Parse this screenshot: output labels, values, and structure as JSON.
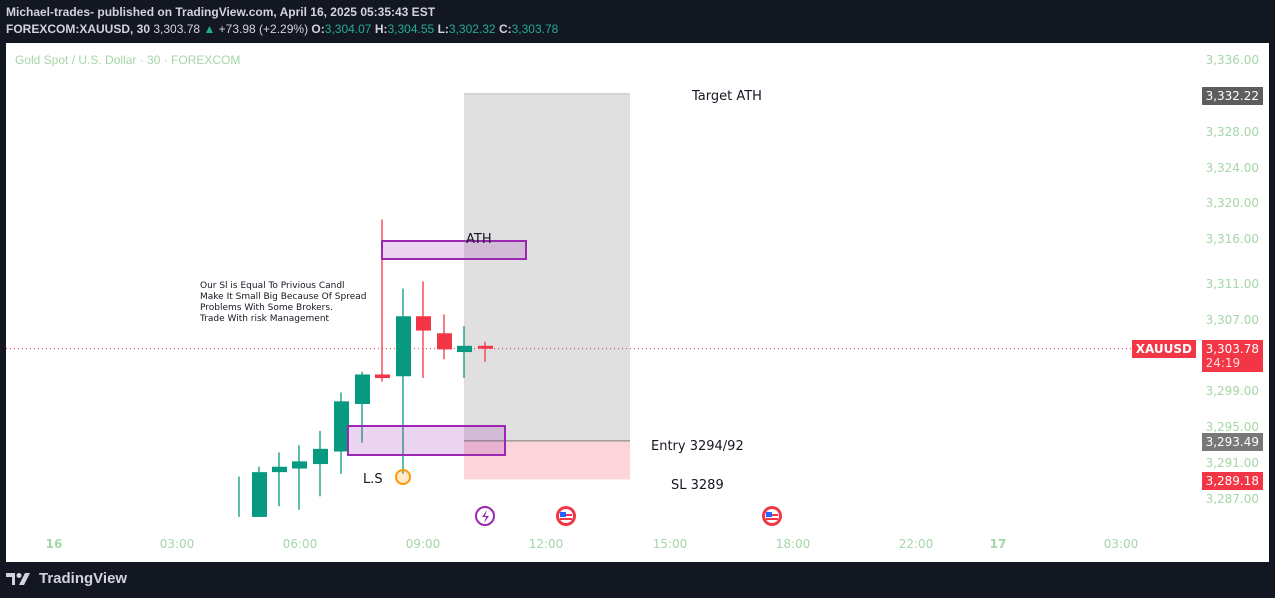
{
  "header": {
    "line1": "Michael-trades- published on TradingView.com, April 16, 2025 05:35:43 EST",
    "symbol": "FOREXCOM:XAUUSD, 30",
    "last": "3,303.78",
    "change": "+73.98 (+2.29%)",
    "o_label": "O:",
    "o": "3,304.07",
    "h_label": "H:",
    "h": "3,304.55",
    "l_label": "L:",
    "l": "3,302.32",
    "c_label": "C:",
    "c": "3,303.78"
  },
  "legend": "Gold Spot / U.S. Dollar · 30 · FOREXCOM",
  "price_axis": [
    "3,336.00",
    "3,328.00",
    "3,324.00",
    "3,320.00",
    "3,316.00",
    "3,311.00",
    "3,307.00",
    "3,299.00",
    "3,295.00",
    "3,291.00",
    "3,287.00"
  ],
  "price_labels": {
    "target": "3,332.22",
    "symbol_tag": "XAUUSD",
    "current": "3,303.78",
    "countdown": "24:19",
    "entry": "3,293.49",
    "stop": "3,289.18"
  },
  "time_axis": [
    "16",
    "03:00",
    "06:00",
    "09:00",
    "12:00",
    "15:00",
    "18:00",
    "22:00",
    "17",
    "03:00"
  ],
  "annotations": {
    "target": "Target ATH",
    "ath": "ATH",
    "entry": "Entry 3294/92",
    "sl": "SL 3289",
    "ls": "L.S",
    "note": "Our Sl is Equal To Privious Candl\nMake It Small Big Because Of Spread\nProblems With Some Brokers.\nTrade With risk Management"
  },
  "footer": {
    "brand": "TradingView"
  },
  "colors": {
    "up": "#089981",
    "down": "#f23645",
    "axis_text": "#a5d6a7",
    "zone": "#9c27b0",
    "target_zone": "#e0e0e0",
    "stop_zone": "#fbd5d9"
  },
  "chart_data": {
    "type": "candlestick",
    "title": "Gold Spot / U.S. Dollar · 30 · FOREXCOM",
    "symbol": "FOREXCOM:XAUUSD",
    "interval": "30",
    "ylim": [
      3285,
      3338
    ],
    "x_ticks": [
      "16",
      "03:00",
      "06:00",
      "09:00",
      "12:00",
      "15:00",
      "18:00",
      "22:00",
      "17",
      "03:00"
    ],
    "y_ticks": [
      3336,
      3328,
      3324,
      3320,
      3316,
      3311,
      3307,
      3299,
      3295,
      3291,
      3287
    ],
    "candles": [
      {
        "o": 3285.0,
        "h": 3289.5,
        "l": 3285.0,
        "c": 3285.0
      },
      {
        "o": 3285.0,
        "h": 3290.6,
        "l": 3285.0,
        "c": 3290.0
      },
      {
        "o": 3290.0,
        "h": 3292.2,
        "l": 3286.2,
        "c": 3290.6
      },
      {
        "o": 3290.4,
        "h": 3293.0,
        "l": 3285.8,
        "c": 3291.2
      },
      {
        "o": 3290.9,
        "h": 3294.6,
        "l": 3287.3,
        "c": 3292.6
      },
      {
        "o": 3292.3,
        "h": 3298.9,
        "l": 3289.8,
        "c": 3297.9
      },
      {
        "o": 3297.6,
        "h": 3301.2,
        "l": 3293.3,
        "c": 3300.9
      },
      {
        "o": 3300.9,
        "h": 3318.2,
        "l": 3300.1,
        "c": 3300.5
      },
      {
        "o": 3300.7,
        "h": 3310.5,
        "l": 3289.8,
        "c": 3307.4
      },
      {
        "o": 3307.4,
        "h": 3311.3,
        "l": 3300.5,
        "c": 3305.8
      },
      {
        "o": 3305.5,
        "h": 3307.6,
        "l": 3302.6,
        "c": 3303.7
      },
      {
        "o": 3303.4,
        "h": 3306.3,
        "l": 3300.5,
        "c": 3304.1
      },
      {
        "o": 3304.1,
        "h": 3304.55,
        "l": 3302.32,
        "c": 3303.78
      }
    ],
    "levels": {
      "current": 3303.78,
      "target": 3332.22,
      "entry": 3293.49,
      "stop": 3289.18
    },
    "zones": [
      {
        "name": "ATH zone",
        "top": 3315.4,
        "bottom": 3313.9
      },
      {
        "name": "demand zone",
        "top": 3295.0,
        "bottom": 3292.0
      }
    ]
  }
}
